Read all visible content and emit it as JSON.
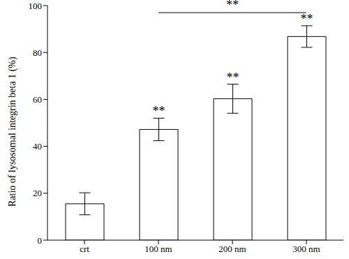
{
  "chart_data": {
    "type": "bar",
    "y_label": "Ratio of lysosomal integrin beta 1 (%)",
    "categories": [
      "crt",
      "100 nm",
      "200 nm",
      "300 nm"
    ],
    "values": [
      15.5,
      47.2,
      60.3,
      86.8
    ],
    "errors": [
      4.7,
      4.8,
      6.2,
      4.6
    ],
    "color": "#ffffff",
    "ylim": [
      0,
      100
    ],
    "yticks": [
      0,
      20,
      40,
      60,
      80,
      100
    ],
    "significance": [
      null,
      "**",
      "**",
      "**"
    ],
    "brackets": [
      {
        "text": "**",
        "from": "100 nm",
        "to": "300 nm"
      }
    ]
  }
}
